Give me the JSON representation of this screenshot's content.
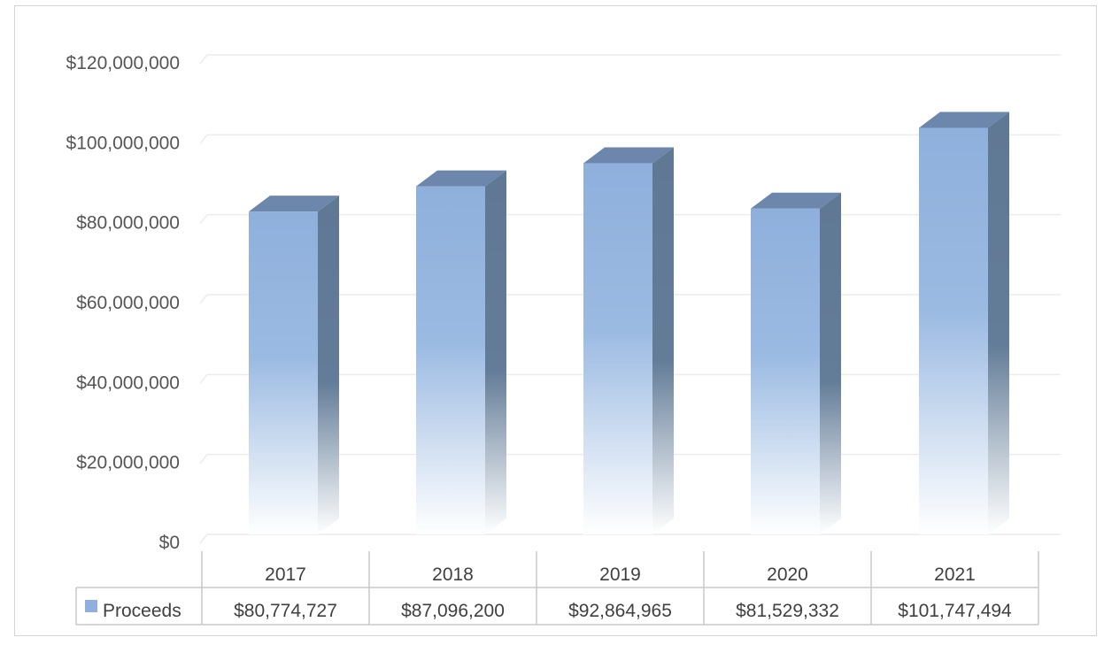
{
  "chart_data": {
    "type": "bar",
    "title": "",
    "xlabel": "",
    "ylabel": "",
    "categories": [
      "2017",
      "2018",
      "2019",
      "2020",
      "2021"
    ],
    "series": [
      {
        "name": "Proceeds",
        "values": [
          80774727,
          87096200,
          92864965,
          81529332,
          101747494
        ],
        "value_labels": [
          "$80,774,727",
          "$87,096,200",
          "$92,864,965",
          "$81,529,332",
          "$101,747,494"
        ]
      }
    ],
    "ylim": [
      0,
      120000000
    ],
    "y_ticks": [
      {
        "value": 0,
        "label": "$0"
      },
      {
        "value": 20000000,
        "label": "$20,000,000"
      },
      {
        "value": 40000000,
        "label": "$40,000,000"
      },
      {
        "value": 60000000,
        "label": "$60,000,000"
      },
      {
        "value": 80000000,
        "label": "$80,000,000"
      },
      {
        "value": 100000000,
        "label": "$100,000,000"
      },
      {
        "value": 120000000,
        "label": "$120,000,000"
      }
    ],
    "grid": true,
    "legend": "data-table",
    "style": "3d-column-gradient",
    "colors": {
      "bar_front": "#8fb0dc",
      "bar_side": "#5f7894",
      "bar_top": "#6c87ab",
      "grid": "#ececec",
      "table_border": "#c8c8c8"
    }
  }
}
